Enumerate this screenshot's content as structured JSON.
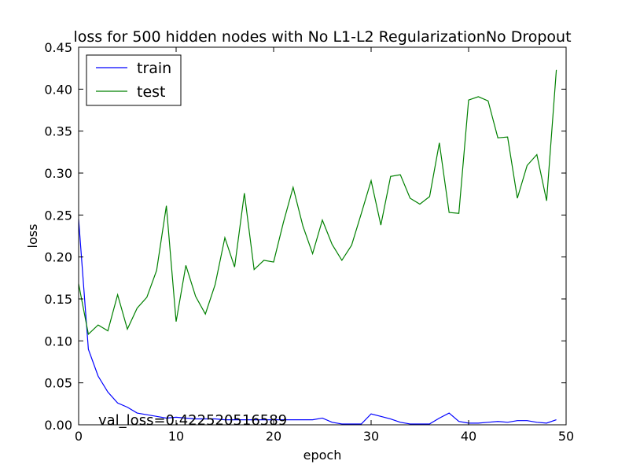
{
  "chart_data": {
    "type": "line",
    "title": "loss for 500 hidden nodes with No L1-L2 RegularizationNo Dropout",
    "xlabel": "epoch",
    "ylabel": "loss",
    "xlim": [
      0,
      50
    ],
    "ylim": [
      0,
      0.45
    ],
    "xticks": [
      0,
      10,
      20,
      30,
      40,
      50
    ],
    "xtick_labels": [
      "0",
      "10",
      "20",
      "30",
      "40",
      "50"
    ],
    "yticks": [
      0,
      0.05,
      0.1,
      0.15,
      0.2,
      0.25,
      0.3,
      0.35,
      0.4,
      0.45
    ],
    "ytick_labels": [
      "0.00",
      "0.05",
      "0.10",
      "0.15",
      "0.20",
      "0.25",
      "0.30",
      "0.35",
      "0.40",
      "0.45"
    ],
    "grid": false,
    "legend_position": "top-left",
    "annotation": "val_loss=0.422520516589",
    "x": [
      0,
      1,
      2,
      3,
      4,
      5,
      6,
      7,
      8,
      9,
      10,
      11,
      12,
      13,
      14,
      15,
      16,
      17,
      18,
      19,
      20,
      21,
      22,
      23,
      24,
      25,
      26,
      27,
      28,
      29,
      30,
      31,
      32,
      33,
      34,
      35,
      36,
      37,
      38,
      39,
      40,
      41,
      42,
      43,
      44,
      45,
      46,
      47,
      48,
      49
    ],
    "series": [
      {
        "name": "train",
        "color": "#0000ff",
        "values": [
          0.245,
          0.09,
          0.058,
          0.039,
          0.026,
          0.021,
          0.014,
          0.012,
          0.01,
          0.008,
          0.009,
          0.008,
          0.007,
          0.007,
          0.007,
          0.006,
          0.006,
          0.006,
          0.006,
          0.006,
          0.006,
          0.006,
          0.006,
          0.006,
          0.006,
          0.008,
          0.003,
          0.001,
          0.001,
          0.001,
          0.013,
          0.01,
          0.007,
          0.003,
          0.001,
          0.001,
          0.001,
          0.008,
          0.014,
          0.004,
          0.002,
          0.002,
          0.003,
          0.004,
          0.003,
          0.005,
          0.005,
          0.003,
          0.002,
          0.006
        ]
      },
      {
        "name": "test",
        "color": "#008000",
        "values": [
          0.168,
          0.108,
          0.119,
          0.112,
          0.155,
          0.114,
          0.139,
          0.152,
          0.184,
          0.261,
          0.123,
          0.19,
          0.153,
          0.132,
          0.167,
          0.223,
          0.188,
          0.276,
          0.185,
          0.196,
          0.194,
          0.241,
          0.283,
          0.237,
          0.204,
          0.244,
          0.215,
          0.196,
          0.214,
          0.252,
          0.291,
          0.238,
          0.296,
          0.298,
          0.27,
          0.263,
          0.272,
          0.336,
          0.253,
          0.252,
          0.387,
          0.391,
          0.386,
          0.342,
          0.343,
          0.27,
          0.309,
          0.322,
          0.267,
          0.423
        ]
      }
    ]
  }
}
